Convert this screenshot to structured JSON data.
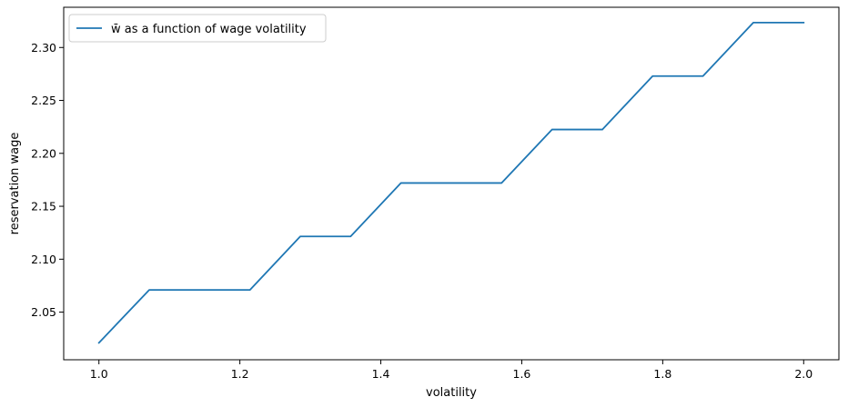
{
  "chart_data": {
    "type": "line",
    "title": "",
    "xlabel": "volatility",
    "ylabel": "reservation wage",
    "xlim": [
      0.95,
      2.05
    ],
    "ylim": [
      2.005,
      2.338
    ],
    "xticks": [
      1.0,
      1.2,
      1.4,
      1.6,
      1.8,
      2.0
    ],
    "xtick_labels": [
      "1.0",
      "1.2",
      "1.4",
      "1.6",
      "1.8",
      "2.0"
    ],
    "yticks": [
      2.05,
      2.1,
      2.15,
      2.2,
      2.25,
      2.3
    ],
    "ytick_labels": [
      "2.05",
      "2.10",
      "2.15",
      "2.20",
      "2.25",
      "2.30"
    ],
    "grid": false,
    "legend": {
      "position": "top-left"
    },
    "series": [
      {
        "name": "w̄ as a function of wage volatility",
        "color": "#1f77b4",
        "x": [
          1.0,
          1.0714,
          1.1429,
          1.2143,
          1.2857,
          1.3571,
          1.4286,
          1.5,
          1.5714,
          1.6429,
          1.7143,
          1.7857,
          1.8571,
          1.9286,
          2.0
        ],
        "y": [
          2.021,
          2.071,
          2.071,
          2.071,
          2.1215,
          2.1215,
          2.172,
          2.172,
          2.172,
          2.2225,
          2.2225,
          2.273,
          2.273,
          2.3235,
          2.3235
        ]
      }
    ]
  }
}
